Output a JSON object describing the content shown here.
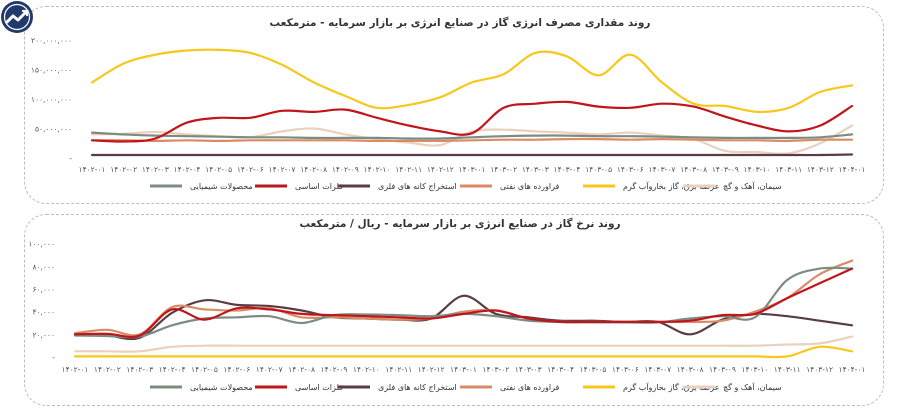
{
  "chart_data": [
    {
      "type": "line",
      "title": "روند مقداری مصرف انرژی گاز در صنایع انرژی بر بازار سرمایه - مترمکعب",
      "categories": [
        "۱۴۰۲-۰۱",
        "۱۴۰۲-۰۲",
        "۱۴۰۲-۰۳",
        "۱۴۰۲-۰۴",
        "۱۴۰۲-۰۵",
        "۱۴۰۲-۰۶",
        "۱۴۰۲-۰۷",
        "۱۴۰۲-۰۸",
        "۱۴۰۲-۰۹",
        "۱۴۰۲-۱۰",
        "۱۴۰۲-۱۱",
        "۱۴۰۲-۱۲",
        "۱۴۰۳-۰۱",
        "۱۴۰۳-۰۲",
        "۱۴۰۳-۰۳",
        "۱۴۰۳-۰۴",
        "۱۴۰۳-۰۵",
        "۱۴۰۳-۰۶",
        "۱۴۰۳-۰۷",
        "۱۴۰۳-۰۸",
        "۱۴۰۳-۰۹",
        "۱۴۰۳-۱۰",
        "۱۴۰۳-۱۱",
        "۱۴۰۳-۱۲",
        "۱۴۰۴-۰۱"
      ],
      "y_ticks": [
        0,
        50000000,
        100000000,
        150000000,
        200000000
      ],
      "y_tick_labels": [
        "-",
        "۵۰,۰۰۰,۰۰۰",
        "۱۰۰,۰۰۰,۰۰۰",
        "۱۵۰,۰۰۰,۰۰۰",
        "۲۰۰,۰۰۰,۰۰۰"
      ],
      "ylim": [
        0,
        210000000
      ],
      "series": [
        {
          "name": "محصولات شیمیایی",
          "color": "#7c8c82",
          "values": [
            43000000,
            40000000,
            38000000,
            37000000,
            36000000,
            35000000,
            35000000,
            34000000,
            34000000,
            34000000,
            33000000,
            33000000,
            35000000,
            37000000,
            38000000,
            38000000,
            37000000,
            37000000,
            36000000,
            35000000,
            34000000,
            34000000,
            34000000,
            35000000,
            40000000
          ]
        },
        {
          "name": "فلزات اساسی",
          "color": "#c0151b",
          "values": [
            30000000,
            28000000,
            33000000,
            60000000,
            68000000,
            68000000,
            80000000,
            78000000,
            82000000,
            68000000,
            55000000,
            45000000,
            42000000,
            85000000,
            92000000,
            95000000,
            87000000,
            85000000,
            92000000,
            87000000,
            70000000,
            55000000,
            45000000,
            55000000,
            88000000
          ]
        },
        {
          "name": "استخراج کانه های فلزی",
          "color": "#5a3d44",
          "values": [
            5000000,
            5000000,
            5000000,
            5000000,
            5000000,
            5000000,
            5000000,
            5000000,
            5000000,
            5000000,
            5000000,
            5000000,
            5000000,
            5000000,
            5000000,
            5000000,
            5000000,
            5000000,
            5000000,
            5000000,
            5000000,
            5000000,
            5000000,
            5000000,
            6000000
          ]
        },
        {
          "name": "فراورده های نفتی",
          "color": "#d88c66",
          "values": [
            30000000,
            30000000,
            29000000,
            30000000,
            29000000,
            30000000,
            30000000,
            30000000,
            30000000,
            29000000,
            29000000,
            29000000,
            30000000,
            31000000,
            31000000,
            32000000,
            32000000,
            31000000,
            32000000,
            31000000,
            30000000,
            30000000,
            29000000,
            31000000,
            31000000
          ]
        },
        {
          "name": "عرضه برق، گاز بخاروآب گرم",
          "color": "#f7c71c",
          "values": [
            128000000,
            160000000,
            175000000,
            182000000,
            183000000,
            178000000,
            158000000,
            128000000,
            105000000,
            85000000,
            90000000,
            103000000,
            128000000,
            142000000,
            178000000,
            172000000,
            140000000,
            175000000,
            128000000,
            92000000,
            88000000,
            78000000,
            85000000,
            112000000,
            123000000
          ]
        },
        {
          "name": "سیمان، آهک و گچ",
          "color": "#ead1bd",
          "values": [
            40000000,
            41000000,
            44000000,
            40000000,
            37000000,
            35000000,
            45000000,
            50000000,
            40000000,
            32000000,
            26000000,
            22000000,
            45000000,
            48000000,
            45000000,
            43000000,
            40000000,
            43000000,
            38000000,
            32000000,
            12000000,
            10000000,
            8000000,
            25000000,
            55000000
          ]
        }
      ],
      "legend": "bottom",
      "ylabel": "",
      "xlabel": ""
    },
    {
      "type": "line",
      "title": "روند نرخ گاز در صنایع انرژی بر بازار سرمایه - ریال / مترمکعب",
      "categories": [
        "۱۴۰۲-۰۱",
        "۱۴۰۲-۰۲",
        "۱۴۰۲-۰۳",
        "۱۴۰۲-۰۴",
        "۱۴۰۲-۰۵",
        "۱۴۰۲-۰۶",
        "۱۴۰۲-۰۷",
        "۱۴۰۲-۰۸",
        "۱۴۰۲-۰۹",
        "۱۴۰۲-۱۰",
        "۱۴۰۲-۱۱",
        "۱۴۰۲-۱۲",
        "۱۴۰۳-۰۱",
        "۱۴۰۳-۰۲",
        "۱۴۰۳-۰۳",
        "۱۴۰۳-۰۴",
        "۱۴۰۳-۰۵",
        "۱۴۰۳-۰۶",
        "۱۴۰۳-۰۷",
        "۱۴۰۳-۰۸",
        "۱۴۰۳-۰۹",
        "۱۴۰۳-۱۰",
        "۱۴۰۳-۱۱",
        "۱۴۰۳-۱۲",
        "۱۴۰۴-۰۱"
      ],
      "y_ticks": [
        0,
        20000,
        40000,
        60000,
        80000,
        100000
      ],
      "y_tick_labels": [
        "-",
        "۲۰,۰۰۰",
        "۴۰,۰۰۰",
        "۶۰,۰۰۰",
        "۸۰,۰۰۰",
        "۱۰۰,۰۰۰"
      ],
      "ylim": [
        0,
        105000
      ],
      "series": [
        {
          "name": "محصولات شیمیایی",
          "color": "#7c8c82",
          "values": [
            19000,
            18500,
            18000,
            28000,
            34000,
            35000,
            36000,
            30000,
            37000,
            37500,
            37000,
            36000,
            38000,
            36000,
            32000,
            31000,
            30500,
            30500,
            30500,
            34000,
            36000,
            35000,
            68000,
            78000,
            78000
          ]
        },
        {
          "name": "فلزات اساسی",
          "color": "#c0151b",
          "values": [
            20000,
            20500,
            19000,
            42000,
            33000,
            43000,
            42000,
            38000,
            37000,
            36000,
            35000,
            34000,
            38000,
            41000,
            34000,
            31000,
            31000,
            31000,
            31000,
            32000,
            37000,
            38000,
            52000,
            65000,
            78000
          ]
        },
        {
          "name": "استخراج کانه های فلزی",
          "color": "#5a3d44",
          "values": [
            20000,
            19000,
            17000,
            39000,
            50000,
            46000,
            45000,
            41000,
            35000,
            34000,
            33000,
            34000,
            54000,
            38000,
            35000,
            32000,
            32000,
            31000,
            31000,
            20000,
            33000,
            38000,
            36000,
            32000,
            28000
          ]
        },
        {
          "name": "فراورده های نفتی",
          "color": "#d88c66",
          "values": [
            21000,
            24000,
            20000,
            44000,
            42000,
            41000,
            43000,
            35000,
            35000,
            34000,
            33000,
            34000,
            40000,
            41000,
            34000,
            31000,
            31000,
            31000,
            31000,
            31000,
            32000,
            40000,
            52000,
            73000,
            85000
          ]
        },
        {
          "name": "عرضه برق، گاز بخاروآب گرم",
          "color": "#f7c71c",
          "values": [
            500,
            500,
            500,
            500,
            500,
            500,
            500,
            500,
            500,
            500,
            500,
            500,
            500,
            500,
            500,
            500,
            500,
            500,
            500,
            500,
            500,
            500,
            500,
            9000,
            5000
          ]
        },
        {
          "name": "سیمان، آهک و گچ",
          "color": "#ead1bd",
          "values": [
            5000,
            5000,
            5000,
            9000,
            10000,
            10000,
            10000,
            10000,
            10000,
            10000,
            10000,
            10000,
            10000,
            10000,
            10000,
            10000,
            10000,
            10000,
            10000,
            10000,
            10000,
            10000,
            11000,
            12000,
            18000
          ]
        }
      ],
      "legend": "bottom",
      "ylabel": "",
      "xlabel": ""
    }
  ]
}
